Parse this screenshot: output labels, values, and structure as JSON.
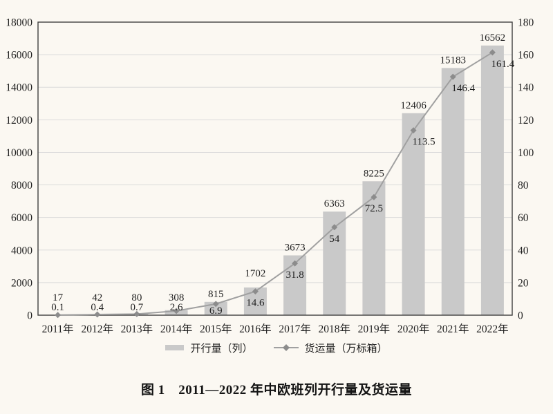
{
  "page": {
    "background": "#fbf8f2",
    "text_color": "#1f1f1f"
  },
  "caption": "图 1　2011—2022 年中欧班列开行量及货运量",
  "chart_data": {
    "type": "bar+line",
    "title": "图 1　2011—2022 年中欧班列开行量及货运量",
    "categories": [
      "2011年",
      "2012年",
      "2013年",
      "2014年",
      "2015年",
      "2016年",
      "2017年",
      "2018年",
      "2019年",
      "2020年",
      "2021年",
      "2022年"
    ],
    "series": [
      {
        "name": "开行量（列）",
        "type": "bar",
        "axis": "left",
        "values": [
          17,
          42,
          80,
          308,
          815,
          1702,
          3673,
          6363,
          8225,
          12406,
          15183,
          16562
        ]
      },
      {
        "name": "货运量（万标箱）",
        "type": "line",
        "axis": "right",
        "values": [
          0.1,
          0.4,
          0.7,
          2.6,
          6.9,
          14.6,
          31.8,
          54,
          72.5,
          113.5,
          146.4,
          161.4
        ]
      }
    ],
    "left_axis": {
      "min": 0,
      "max": 18000,
      "step": 2000
    },
    "right_axis": {
      "min": 0,
      "max": 180,
      "step": 20
    },
    "grid": true,
    "legend_position": "bottom",
    "colors": {
      "bar": "#c9c9c9",
      "line": "#a0a0a0",
      "marker": "#8c8c8c",
      "grid": "#dadada",
      "axis": "#3f3f3f",
      "label": "#1f1f1f"
    }
  }
}
